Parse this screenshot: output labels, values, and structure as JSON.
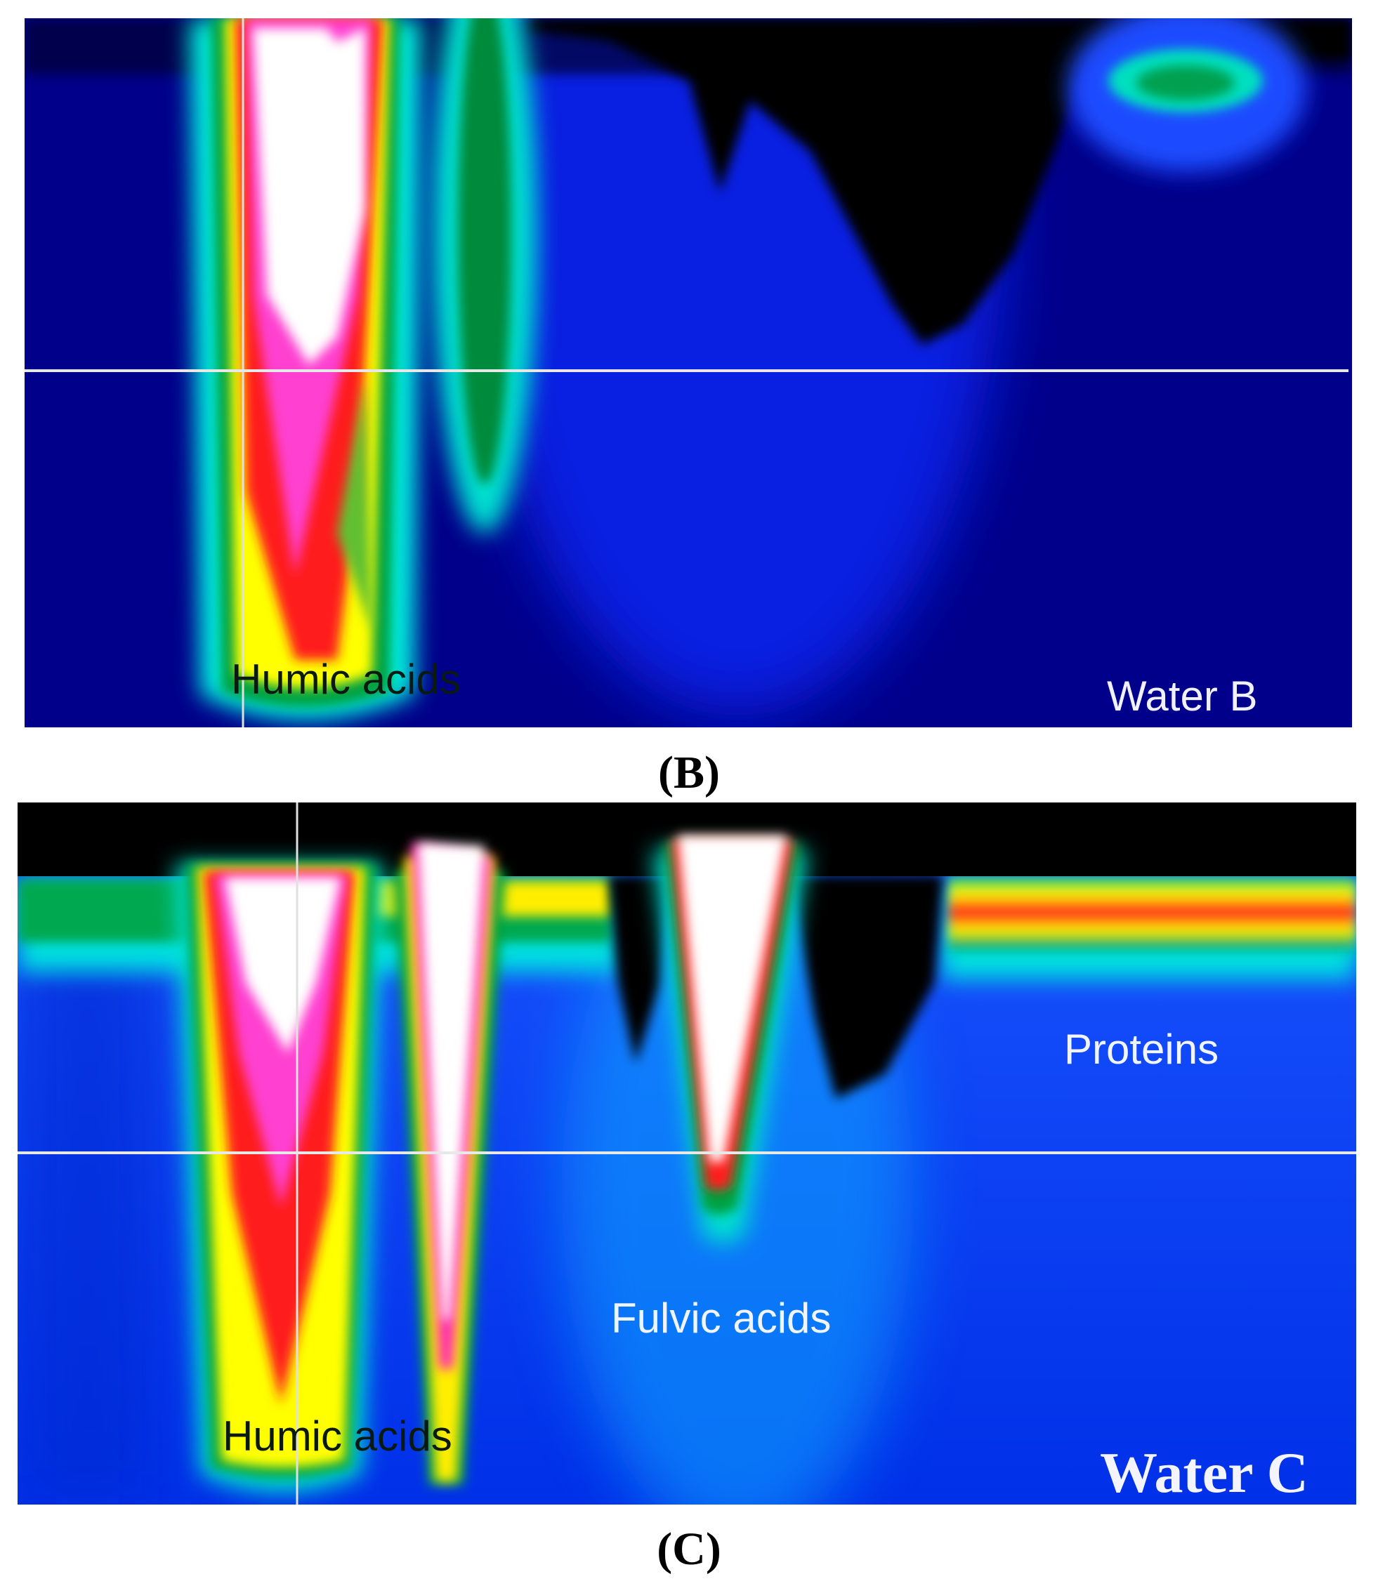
{
  "panels": [
    {
      "label": "(B)",
      "annotations": [
        "Humic acids",
        "Water B"
      ]
    },
    {
      "label": "(C)",
      "annotations": [
        "Proteins",
        "Fulvic acids",
        "Humic acids",
        "Water C"
      ]
    }
  ]
}
